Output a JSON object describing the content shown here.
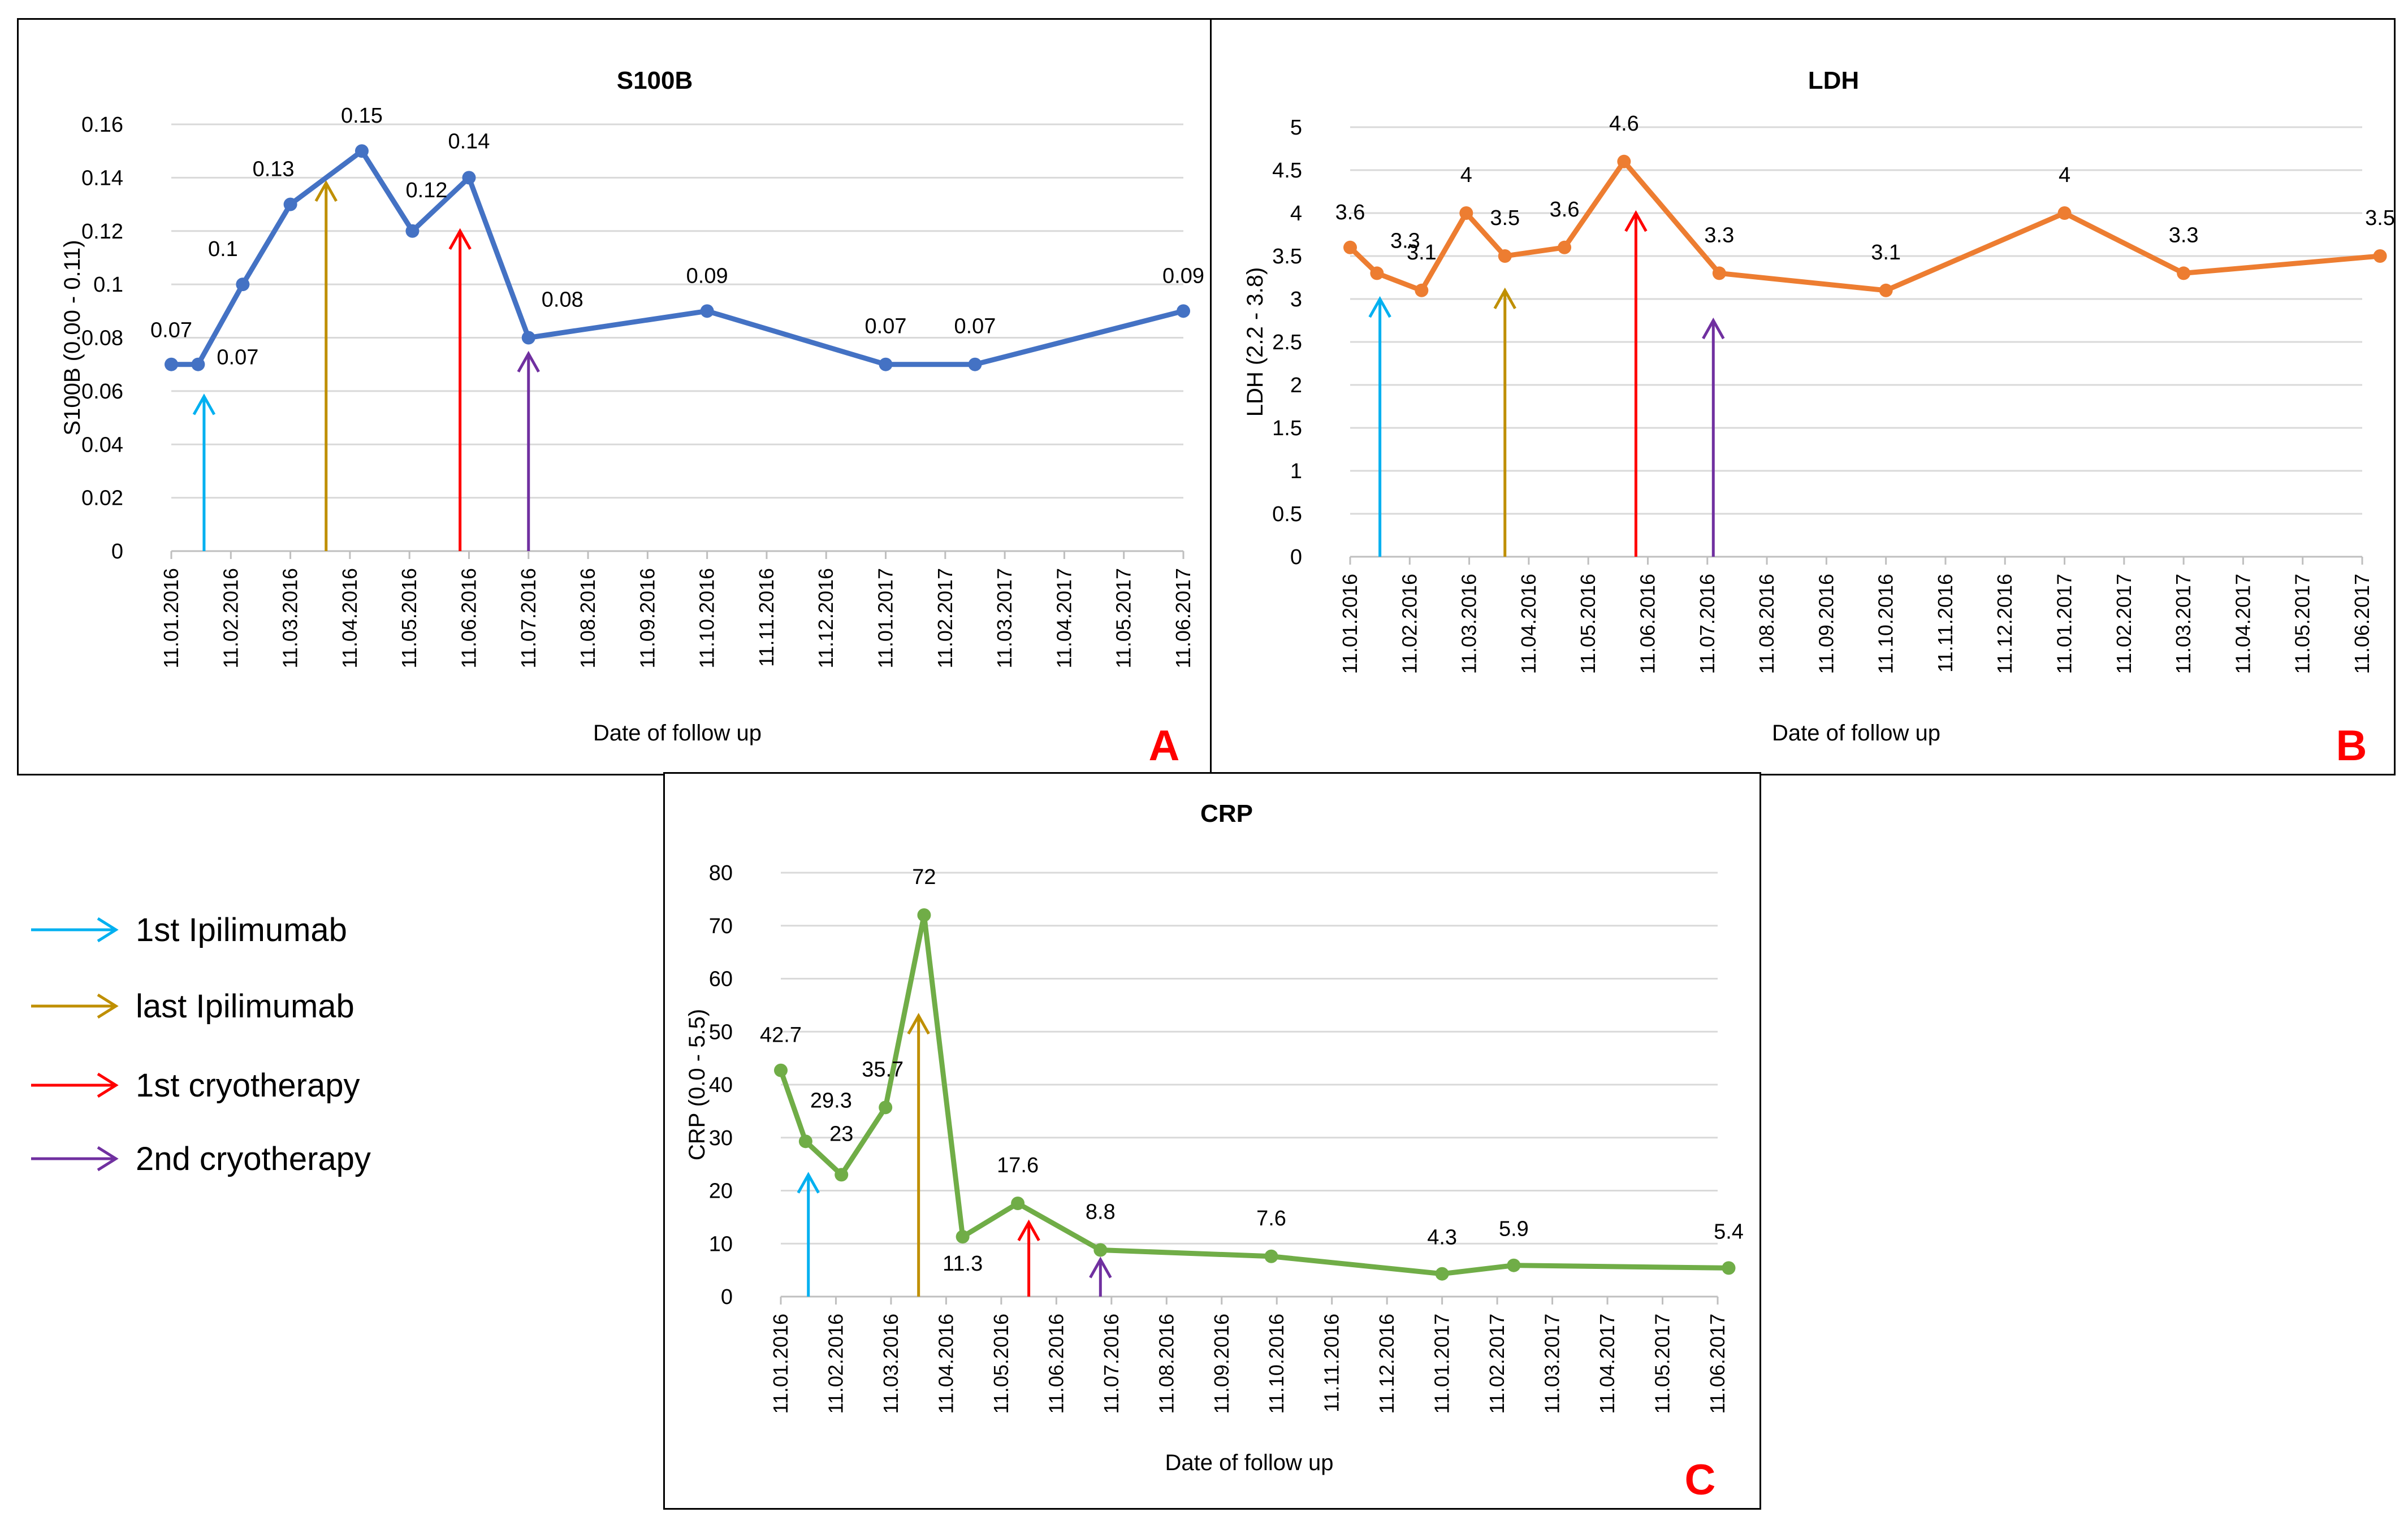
{
  "legend": {
    "items": [
      {
        "label": "1st  Ipilimumab",
        "color": "#00B0F0",
        "icon": "arrow-right-icon"
      },
      {
        "label": "last Ipilimumab",
        "color": "#BF8F00",
        "icon": "arrow-right-icon"
      },
      {
        "label": "1st  cryotherapy",
        "color": "#FF0000",
        "icon": "arrow-right-icon"
      },
      {
        "label": "2nd cryotherapy",
        "color": "#7030A0",
        "icon": "arrow-right-icon"
      }
    ]
  },
  "chart_data": [
    {
      "panel": "A",
      "type": "line",
      "title": "S100B",
      "xlabel": "Date of follow up",
      "ylabel": "S100B (0.00 - 0.11)",
      "ylim": [
        0,
        0.16
      ],
      "yticks": [
        "0",
        "0.02",
        "0.04",
        "0.06",
        "0.08",
        "0.1",
        "0.12",
        "0.14",
        "0.16"
      ],
      "grid": true,
      "line_color": "#4472C4",
      "x_tick_labels": [
        "11.01.2016",
        "11.02.2016",
        "11.03.2016",
        "11.04.2016",
        "11.05.2016",
        "11.06.2016",
        "11.07.2016",
        "11.08.2016",
        "11.09.2016",
        "11.10.2016",
        "11.11.2016",
        "11.12.2016",
        "11.01.2017",
        "11.02.2017",
        "11.03.2017",
        "11.04.2017",
        "11.05.2017",
        "11.06.2017"
      ],
      "x_month_offsets": [
        0,
        0.45,
        1.2,
        2.0,
        3.2,
        4.05,
        5.0,
        6.0,
        9.0,
        12.0,
        13.5,
        17.0
      ],
      "values": [
        0.07,
        0.07,
        0.1,
        0.13,
        0.15,
        0.12,
        0.14,
        0.08,
        0.09,
        0.07,
        0.07,
        0.09
      ],
      "data_labels": [
        "0.07",
        "0.07",
        "0.1",
        "0.13",
        "0.15",
        "0.12",
        "0.14",
        "0.08",
        "0.09",
        "0.07",
        "0.07",
        "0.09"
      ],
      "event_arrows": [
        {
          "event": "1st Ipilimumab",
          "month_offset": 0.55,
          "value": 0.058,
          "color": "#00B0F0"
        },
        {
          "event": "last Ipilimumab",
          "month_offset": 2.6,
          "value": 0.138,
          "color": "#BF8F00"
        },
        {
          "event": "1st cryotherapy",
          "month_offset": 4.85,
          "value": 0.12,
          "color": "#FF0000"
        },
        {
          "event": "2nd cryotherapy",
          "month_offset": 6.0,
          "value": 0.074,
          "color": "#7030A0"
        }
      ]
    },
    {
      "panel": "B",
      "type": "line",
      "title": "LDH",
      "xlabel": "Date of follow up",
      "ylabel": "LDH (2.2 - 3.8)",
      "ylim": [
        0,
        5
      ],
      "yticks": [
        "0",
        "0.5",
        "1",
        "1.5",
        "2",
        "2.5",
        "3",
        "3.5",
        "4",
        "4.5",
        "5"
      ],
      "grid": true,
      "line_color": "#ED7D31",
      "x_tick_labels": [
        "11.01.2016",
        "11.02.2016",
        "11.03.2016",
        "11.04.2016",
        "11.05.2016",
        "11.06.2016",
        "11.07.2016",
        "11.08.2016",
        "11.09.2016",
        "11.10.2016",
        "11.11.2016",
        "11.12.2016",
        "11.01.2017",
        "11.02.2017",
        "11.03.2017",
        "11.04.2017",
        "11.05.2017",
        "11.06.2017"
      ],
      "x_month_offsets": [
        0,
        0.45,
        1.2,
        1.95,
        2.6,
        3.6,
        4.6,
        6.2,
        9.0,
        12.0,
        14.0,
        17.3
      ],
      "values": [
        3.6,
        3.3,
        3.1,
        4,
        3.5,
        3.6,
        4.6,
        3.3,
        3.1,
        4,
        3.3,
        3.5
      ],
      "data_labels": [
        "3.6",
        "3.3",
        "3.1",
        "4",
        "3.5",
        "3.6",
        "4.6",
        "3.3",
        "3.1",
        "4",
        "3.3",
        "3.5"
      ],
      "event_arrows": [
        {
          "event": "1st Ipilimumab",
          "month_offset": 0.5,
          "value": 3.0,
          "color": "#00B0F0"
        },
        {
          "event": "last Ipilimumab",
          "month_offset": 2.6,
          "value": 3.1,
          "color": "#BF8F00"
        },
        {
          "event": "1st cryotherapy",
          "month_offset": 4.8,
          "value": 4.0,
          "color": "#FF0000"
        },
        {
          "event": "2nd cryotherapy",
          "month_offset": 6.1,
          "value": 2.75,
          "color": "#7030A0"
        }
      ]
    },
    {
      "panel": "C",
      "type": "line",
      "title": "CRP",
      "xlabel": "Date of follow up",
      "ylabel": "CRP (0.0 - 5.5)",
      "ylim": [
        0,
        80
      ],
      "yticks": [
        "0",
        "10",
        "20",
        "30",
        "40",
        "50",
        "60",
        "70",
        "80"
      ],
      "grid": true,
      "line_color": "#70AD47",
      "x_tick_labels": [
        "11.01.2016",
        "11.02.2016",
        "11.03.2016",
        "11.04.2016",
        "11.05.2016",
        "11.06.2016",
        "11.07.2016",
        "11.08.2016",
        "11.09.2016",
        "11.10.2016",
        "11.11.2016",
        "11.12.2016",
        "11.01.2017",
        "11.02.2017",
        "11.03.2017",
        "11.04.2017",
        "11.05.2017",
        "11.06.2017"
      ],
      "x_month_offsets": [
        0,
        0.45,
        1.1,
        1.9,
        2.6,
        3.3,
        4.3,
        5.8,
        8.9,
        12.0,
        13.3,
        17.2
      ],
      "values": [
        42.7,
        29.3,
        23,
        35.7,
        72,
        11.3,
        17.6,
        8.8,
        7.6,
        4.3,
        5.9,
        5.4
      ],
      "data_labels": [
        "42.7",
        "29.3",
        "23",
        "35.7",
        "72",
        "11.3",
        "17.6",
        "8.8",
        "7.6",
        "4.3",
        "5.9",
        "5.4"
      ],
      "event_arrows": [
        {
          "event": "1st Ipilimumab",
          "month_offset": 0.5,
          "value": 23,
          "color": "#00B0F0"
        },
        {
          "event": "last Ipilimumab",
          "month_offset": 2.5,
          "value": 53,
          "color": "#BF8F00"
        },
        {
          "event": "1st cryotherapy",
          "month_offset": 4.5,
          "value": 14,
          "color": "#FF0000"
        },
        {
          "event": "2nd cryotherapy",
          "month_offset": 5.8,
          "value": 7,
          "color": "#7030A0"
        }
      ]
    }
  ]
}
